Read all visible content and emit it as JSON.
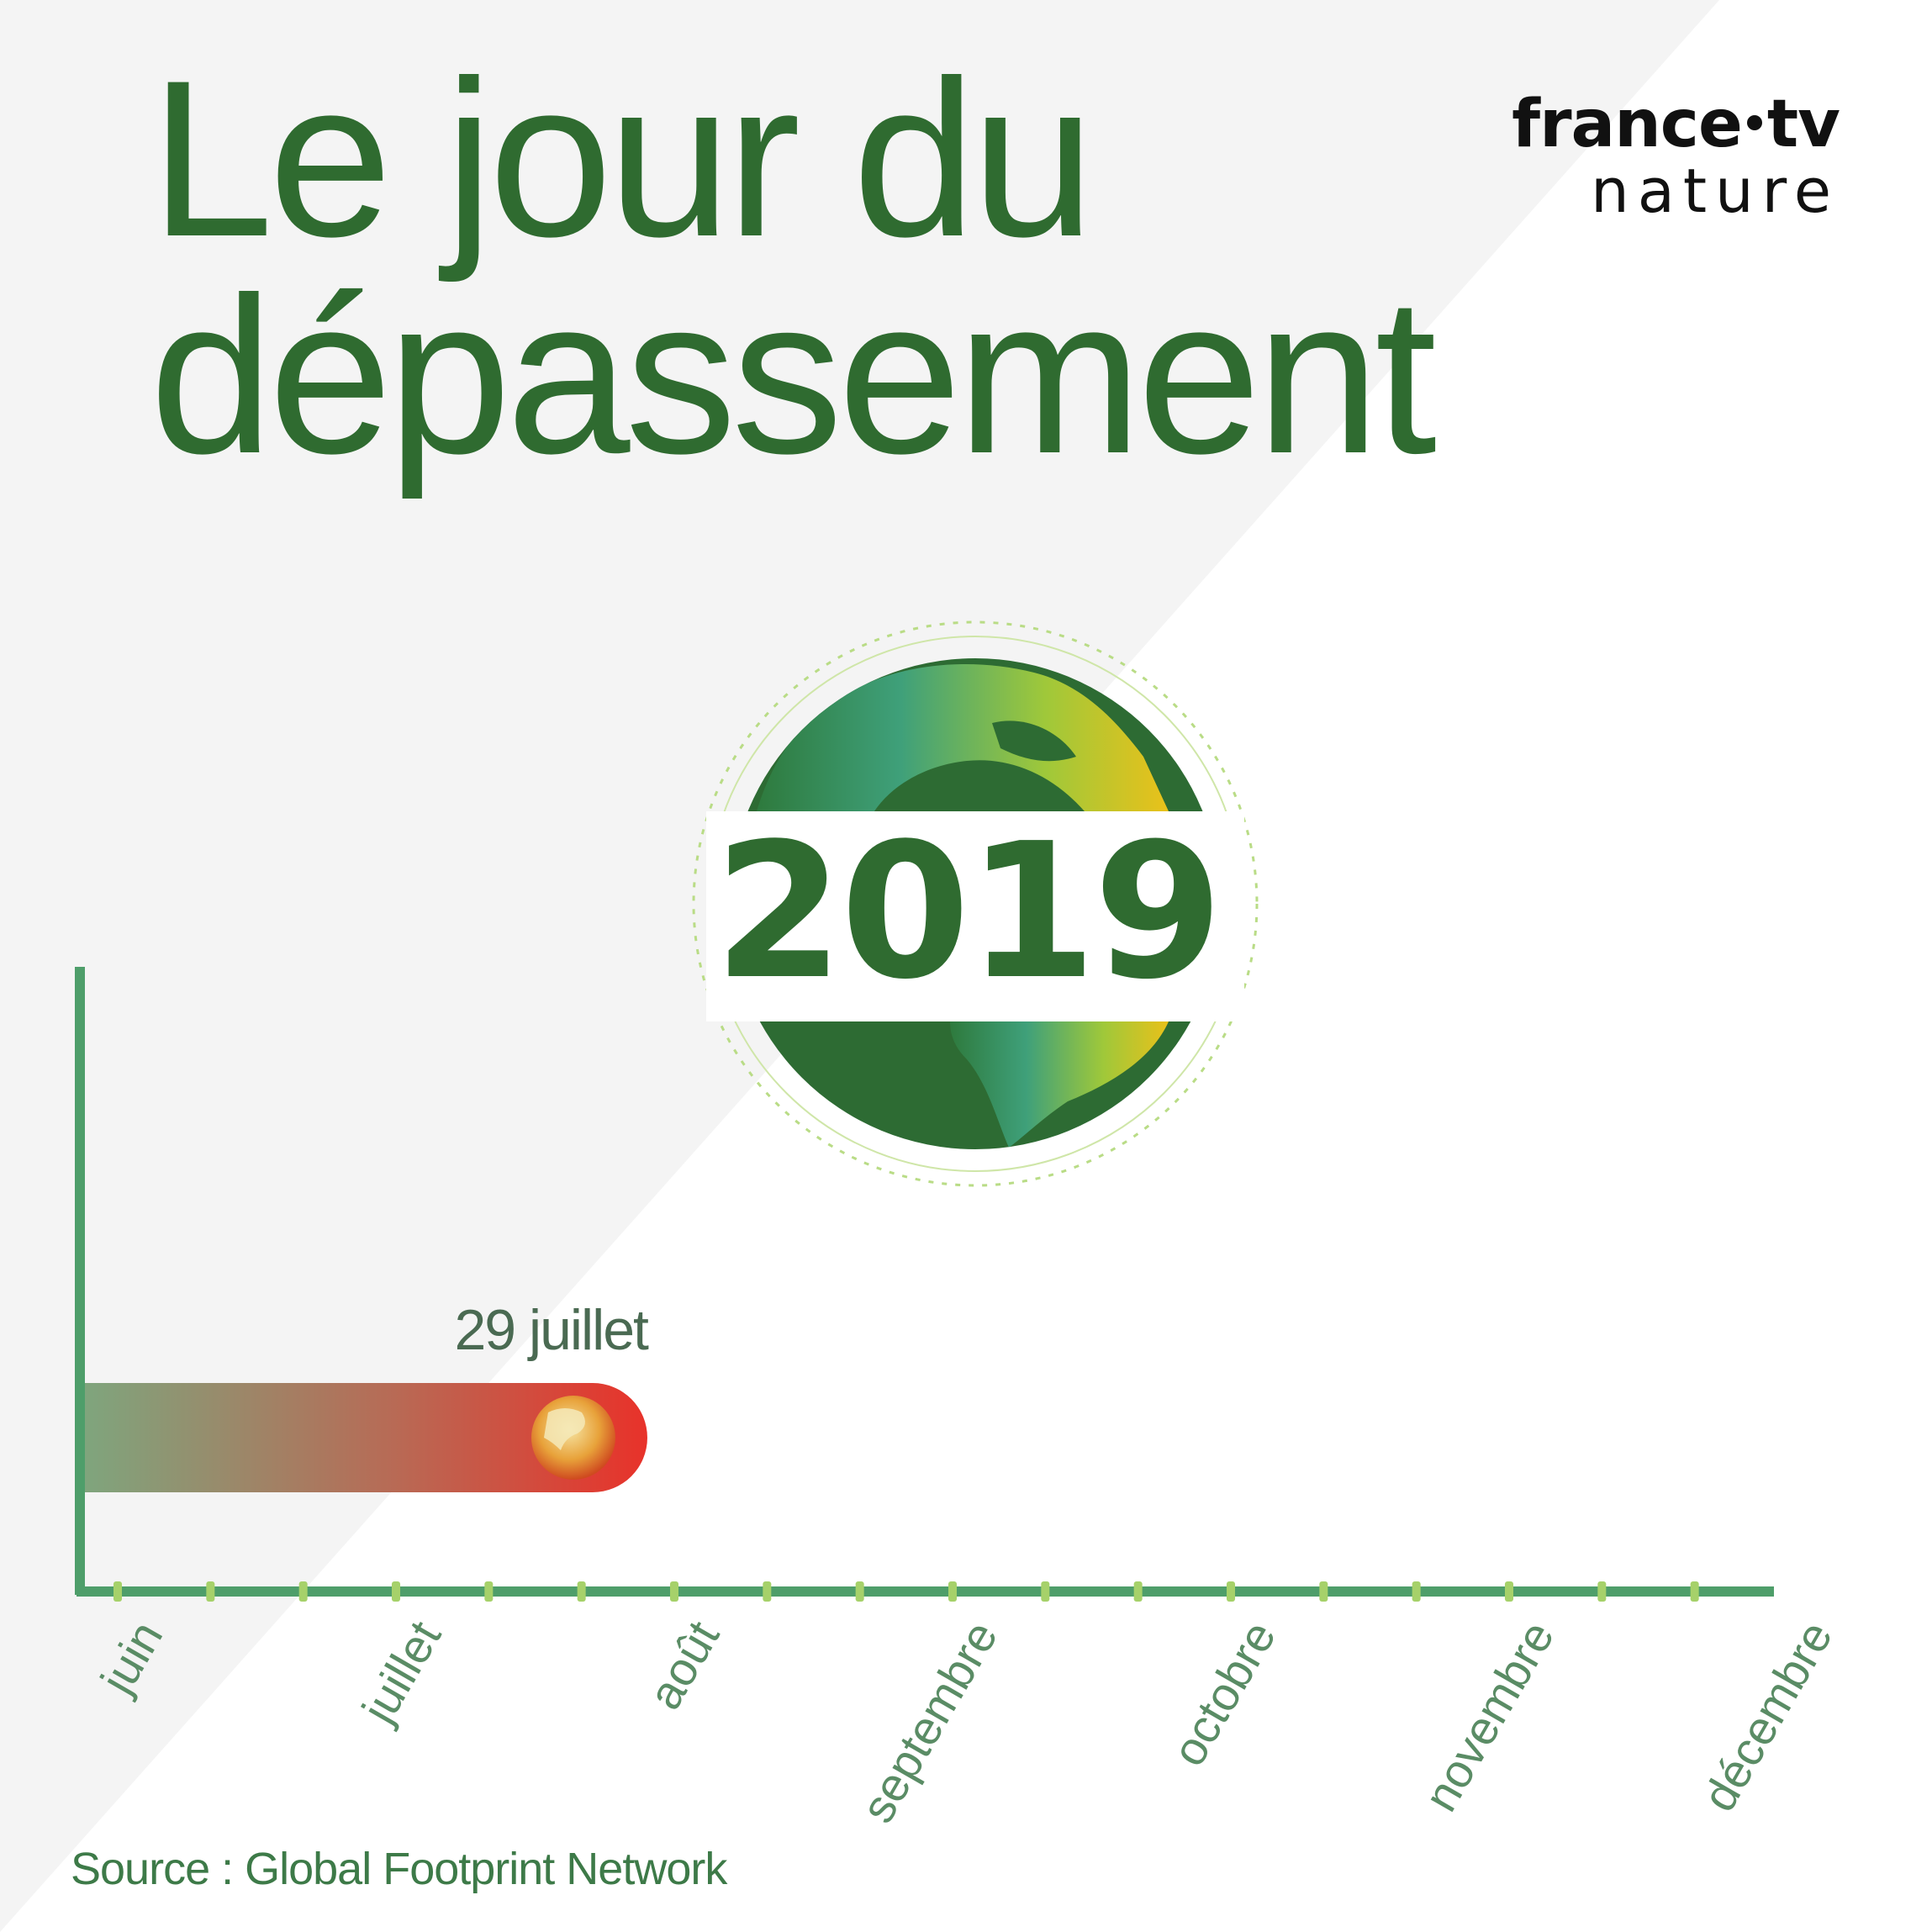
{
  "title_lines": [
    "Le jour du",
    "dépassement"
  ],
  "brand": {
    "top_left": "france",
    "top_right": "tv",
    "bottom": "nature"
  },
  "year": "2019",
  "source": "Source : Global Footprint Network",
  "colors": {
    "title": "#2f6b30",
    "axis": "#4e9e6a",
    "tick": "#a6d16a",
    "bar_start": "#7fa57d",
    "bar_end": "#e8322a",
    "grey_bg": "#f4f4f4",
    "month_label": "#5a8c65"
  },
  "chart_data": {
    "type": "bar",
    "orientation": "horizontal",
    "x_categories": [
      "juin",
      "juillet",
      "août",
      "septembre",
      "octobre",
      "novembre",
      "décembre"
    ],
    "xlim": [
      "2019-06-01",
      "2019-12-31"
    ],
    "series": [
      {
        "value": "2019-07-29",
        "label": "29 juillet"
      }
    ],
    "title": "Le jour du dépassement",
    "source": "Source : Global Footprint Network"
  }
}
